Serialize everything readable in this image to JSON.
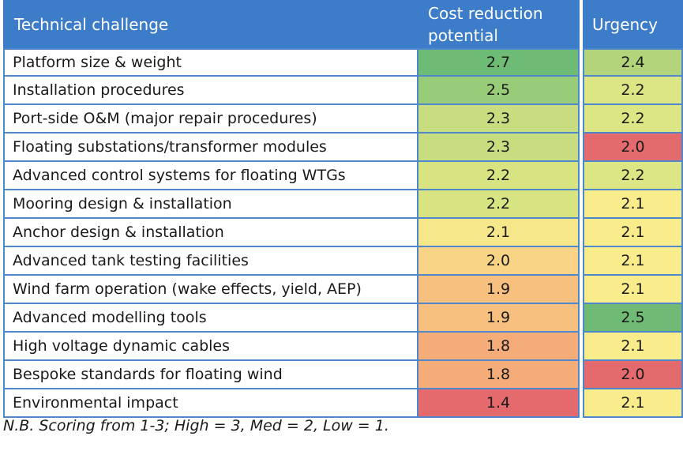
{
  "table": {
    "headers": {
      "challenge": "Technical challenge",
      "cost_line1": "Cost reduction",
      "cost_line2": "potential",
      "urgency": "Urgency"
    },
    "rows": [
      {
        "name": "Platform size & weight",
        "cost": "2.7",
        "cost_color": "#6dbb74",
        "urgency": "2.4",
        "urgency_color": "#b3d47a"
      },
      {
        "name": "Installation procedures",
        "cost": "2.5",
        "cost_color": "#99cc78",
        "urgency": "2.2",
        "urgency_color": "#dde684"
      },
      {
        "name": "Port-side O&M (major repair procedures)",
        "cost": "2.3",
        "cost_color": "#c7dd7f",
        "urgency": "2.2",
        "urgency_color": "#dde684"
      },
      {
        "name": "Floating substations/transformer modules",
        "cost": "2.3",
        "cost_color": "#c7dd7f",
        "urgency": "2.0",
        "urgency_color": "#e36b6d"
      },
      {
        "name": "Advanced control systems for floating WTGs",
        "cost": "2.2",
        "cost_color": "#d8e381",
        "urgency": "2.2",
        "urgency_color": "#dde684"
      },
      {
        "name": "Mooring design & installation",
        "cost": "2.2",
        "cost_color": "#d8e381",
        "urgency": "2.1",
        "urgency_color": "#f9ec8c"
      },
      {
        "name": "Anchor design & installation",
        "cost": "2.1",
        "cost_color": "#f6e88a",
        "urgency": "2.1",
        "urgency_color": "#f9ec8c"
      },
      {
        "name": "Advanced tank testing facilities",
        "cost": "2.0",
        "cost_color": "#f9d486",
        "urgency": "2.1",
        "urgency_color": "#f9ec8c"
      },
      {
        "name": "Wind farm operation (wake effects, yield, AEP)",
        "cost": "1.9",
        "cost_color": "#f7c07f",
        "urgency": "2.1",
        "urgency_color": "#f9ec8c"
      },
      {
        "name": "Advanced modelling tools",
        "cost": "1.9",
        "cost_color": "#f7c07f",
        "urgency": "2.5",
        "urgency_color": "#6fbb76"
      },
      {
        "name": "High voltage dynamic cables",
        "cost": "1.8",
        "cost_color": "#f4ad79",
        "urgency": "2.1",
        "urgency_color": "#f9ec8c"
      },
      {
        "name": "Bespoke standards for floating wind",
        "cost": "1.8",
        "cost_color": "#f4ad79",
        "urgency": "2.0",
        "urgency_color": "#e36b6d"
      },
      {
        "name": "Environmental impact",
        "cost": "1.4",
        "cost_color": "#e56a6e",
        "urgency": "2.1",
        "urgency_color": "#f9ec8c"
      }
    ]
  },
  "note": "N.B. Scoring from 1-3; High = 3, Med = 2, Low = 1."
}
